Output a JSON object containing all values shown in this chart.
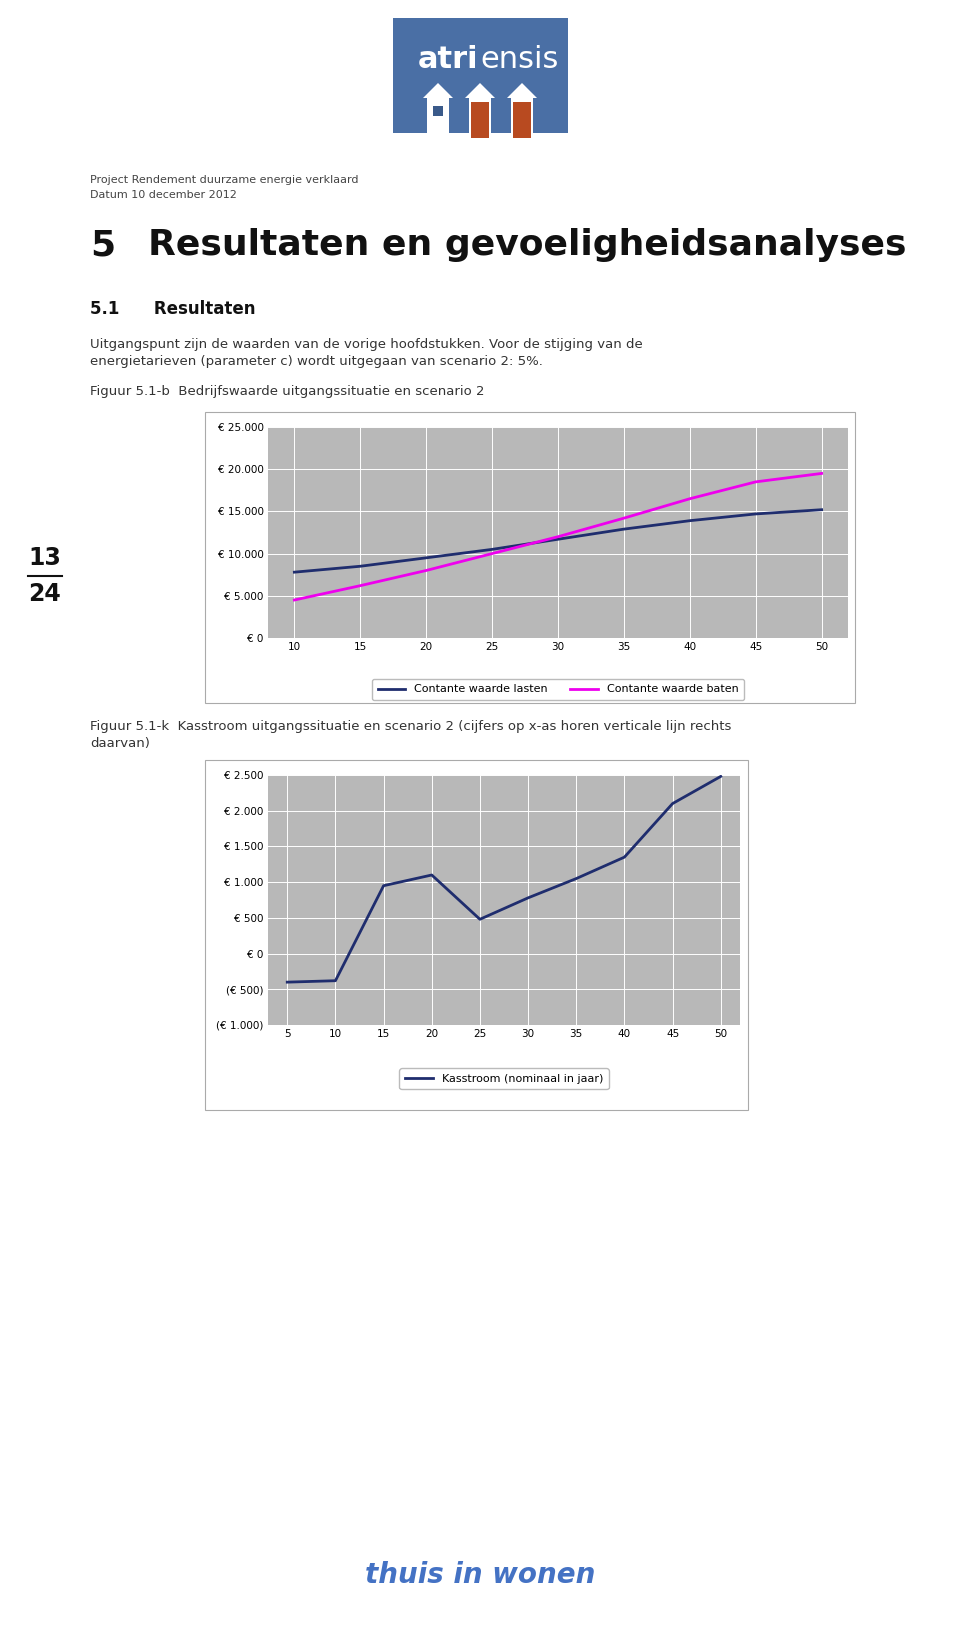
{
  "page_bg": "#ffffff",
  "header_line1": "Project Rendement duurzame energie verklaard",
  "header_line2": "Datum 10 december 2012",
  "section_number": "5",
  "section_title": "Resultaten en gevoeligheidsanalyses",
  "subsection": "5.1      Resultaten",
  "para_line1": "Uitgangspunt zijn de waarden van de vorige hoofdstukken. Voor de stijging van de",
  "para_line2": "energietarieven (parameter c) wordt uitgegaan van scenario 2: 5%.",
  "fig1_caption": "Figuur 5.1-b  Bedrijfswaarde uitgangssituatie en scenario 2",
  "fig2_cap1": "Figuur 5.1-k  Kasstroom uitgangssituatie en scenario 2 (cijfers op x-as horen verticale lijn rechts",
  "fig2_cap2": "daarvan)",
  "page_number_top": "13",
  "page_number_bottom": "24",
  "footer_text": "thuis in wonen",
  "logo_bg": "#4a6fa5",
  "logo_atri": "atri",
  "logo_ensis": "ensis",
  "chart1": {
    "x": [
      10,
      15,
      20,
      25,
      30,
      35,
      40,
      45,
      50
    ],
    "lasten": [
      7800,
      8500,
      9500,
      10500,
      11700,
      12900,
      13900,
      14700,
      15200
    ],
    "baten": [
      4500,
      6200,
      8000,
      10000,
      12000,
      14200,
      16500,
      18500,
      19500
    ],
    "ylim": [
      0,
      25000
    ],
    "yticks": [
      0,
      5000,
      10000,
      15000,
      20000,
      25000
    ],
    "ytick_labels": [
      "€ 0",
      "€ 5.000",
      "€ 10.000",
      "€ 15.000",
      "€ 20.000",
      "€ 25.000"
    ],
    "lasten_color": "#1f2d6e",
    "baten_color": "#ee00ee",
    "legend_lasten": "Contante waarde lasten",
    "legend_baten": "Contante waarde baten",
    "bg_color": "#b8b8b8",
    "grid_color": "#ffffff"
  },
  "chart2": {
    "x": [
      5,
      10,
      15,
      20,
      25,
      30,
      35,
      40,
      45,
      50
    ],
    "kasstroom": [
      -400,
      -380,
      950,
      1100,
      480,
      780,
      1050,
      1350,
      2100,
      2480
    ],
    "ylim": [
      -1000,
      2500
    ],
    "yticks": [
      -1000,
      -500,
      0,
      500,
      1000,
      1500,
      2000,
      2500
    ],
    "ytick_labels": [
      "(€ 1.000)",
      "(€ 500)",
      "€ 0",
      "€ 500",
      "€ 1.000",
      "€ 1.500",
      "€ 2.000",
      "€ 2.500"
    ],
    "kasstroom_color": "#1f2d6e",
    "legend_label": "Kasstroom (nominaal in jaar)",
    "bg_color": "#b8b8b8",
    "grid_color": "#ffffff"
  }
}
